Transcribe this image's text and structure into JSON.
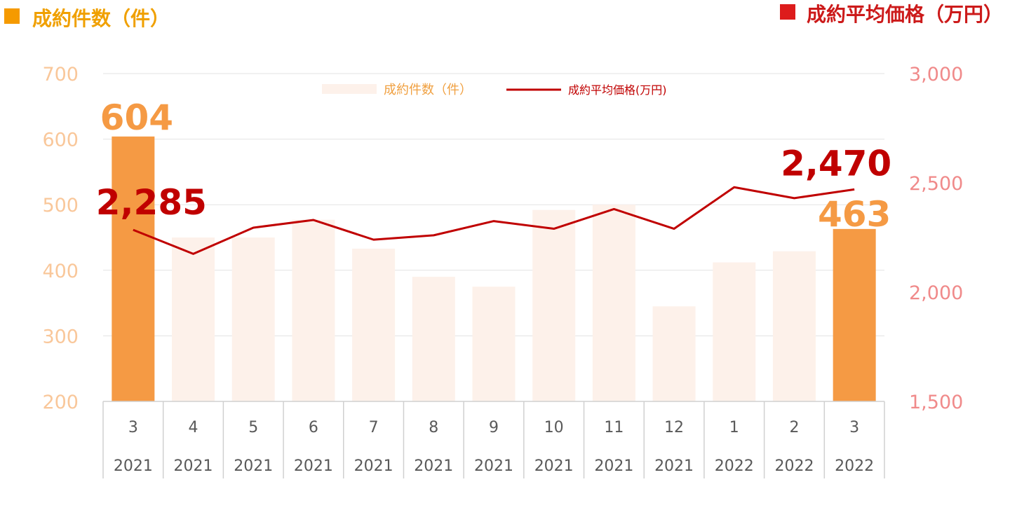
{
  "headers": {
    "left_title": "成約件数（件）",
    "right_title": "成約平均価格（万円）",
    "left_marker_color": "#f59a00",
    "right_marker_color": "#dd1c1c"
  },
  "chart_data": {
    "type": "bar",
    "categories": [
      {
        "month": "3",
        "year": "2021"
      },
      {
        "month": "4",
        "year": "2021"
      },
      {
        "month": "5",
        "year": "2021"
      },
      {
        "month": "6",
        "year": "2021"
      },
      {
        "month": "7",
        "year": "2021"
      },
      {
        "month": "8",
        "year": "2021"
      },
      {
        "month": "9",
        "year": "2021"
      },
      {
        "month": "10",
        "year": "2021"
      },
      {
        "month": "11",
        "year": "2021"
      },
      {
        "month": "12",
        "year": "2021"
      },
      {
        "month": "1",
        "year": "2022"
      },
      {
        "month": "2",
        "year": "2022"
      },
      {
        "month": "3",
        "year": "2022"
      }
    ],
    "series": [
      {
        "name": "成約件数（件）",
        "type": "bar",
        "axis": "left",
        "values": [
          604,
          450,
          450,
          477,
          433,
          390,
          375,
          492,
          500,
          345,
          412,
          429,
          463
        ],
        "color": "#fdf1ea",
        "highlight_color": "#f59a44",
        "highlight_indices": [
          0,
          12
        ]
      },
      {
        "name": "成約平均価格(万円)",
        "type": "line",
        "axis": "right",
        "values": [
          2285,
          2175,
          2295,
          2330,
          2240,
          2260,
          2325,
          2290,
          2380,
          2290,
          2480,
          2430,
          2470
        ],
        "color": "#c00000"
      }
    ],
    "left_axis": {
      "min": 200,
      "max": 700,
      "ticks": [
        "700",
        "600",
        "500",
        "400",
        "300",
        "200"
      ],
      "tick_values": [
        700,
        600,
        500,
        400,
        300,
        200
      ]
    },
    "right_axis": {
      "min": 1500,
      "max": 3000,
      "ticks": [
        "3,000",
        "2,500",
        "2,000",
        "1,500"
      ],
      "tick_values": [
        3000,
        2500,
        2000,
        1500
      ]
    },
    "callouts": {
      "first_bar": "604",
      "last_bar": "463",
      "first_line": "2,285",
      "last_line": "2,470"
    },
    "grid": true,
    "legend_placement": "top-center"
  }
}
